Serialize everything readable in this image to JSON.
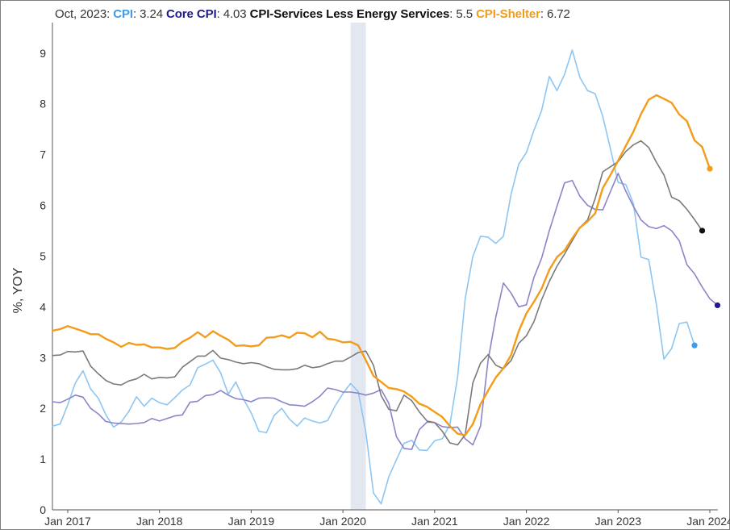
{
  "legend": {
    "date": "Oct, 2023",
    "items": [
      {
        "name": "CPI",
        "value": "3.24",
        "color": "#3d9be9"
      },
      {
        "name": "Core CPI",
        "value": "4.03",
        "color": "#1f1a8c"
      },
      {
        "name": "CPI-Services Less Energy Services",
        "value": "5.5",
        "color": "#111111"
      },
      {
        "name": "CPI-Shelter",
        "value": "6.72",
        "color": "#f39c1a"
      }
    ]
  },
  "chart_data": {
    "type": "line",
    "title": "",
    "xlabel": "",
    "ylabel": "%, YOY",
    "x_ticks": [
      "Jan 2017",
      "Jan 2018",
      "Jan 2019",
      "Jan 2020",
      "Jan 2021",
      "Jan 2022",
      "Jan 2023",
      "Jan 2024"
    ],
    "y_ticks": [
      0,
      1,
      2,
      3,
      4,
      5,
      6,
      7,
      8,
      9
    ],
    "ylim": [
      0,
      9.6
    ],
    "xlim": [
      "2016-11",
      "2024-01"
    ],
    "x_start": "2016-11",
    "recession_band": [
      "2020-02",
      "2020-04"
    ],
    "grid": false,
    "series": [
      {
        "name": "CPI",
        "color": "#8ec6f2",
        "end_marker_color": "#3d9be9",
        "values": [
          1.65,
          1.69,
          2.07,
          2.5,
          2.74,
          2.38,
          2.2,
          1.87,
          1.63,
          1.73,
          1.94,
          2.23,
          2.04,
          2.2,
          2.11,
          2.07,
          2.21,
          2.36,
          2.46,
          2.8,
          2.87,
          2.95,
          2.7,
          2.28,
          2.52,
          2.18,
          1.91,
          1.55,
          1.52,
          1.86,
          2.0,
          1.79,
          1.65,
          1.81,
          1.75,
          1.71,
          1.76,
          2.05,
          2.29,
          2.49,
          2.33,
          1.54,
          0.33,
          0.12,
          0.65,
          0.99,
          1.31,
          1.37,
          1.18,
          1.17,
          1.36,
          1.4,
          1.68,
          2.62,
          4.16,
          4.99,
          5.39,
          5.37,
          5.25,
          5.39,
          6.22,
          6.81,
          7.04,
          7.48,
          7.87,
          8.54,
          8.26,
          8.58,
          9.06,
          8.52,
          8.26,
          8.2,
          7.75,
          7.11,
          6.45,
          6.41,
          6.04,
          4.98,
          4.93,
          4.05,
          2.97,
          3.18,
          3.67,
          3.7,
          3.24
        ]
      },
      {
        "name": "Core CPI",
        "color": "#8a85c8",
        "end_marker_color": "#1f1a8c",
        "values": [
          2.13,
          2.11,
          2.18,
          2.26,
          2.22,
          2.0,
          1.89,
          1.74,
          1.71,
          1.7,
          1.69,
          1.7,
          1.72,
          1.8,
          1.75,
          1.8,
          1.85,
          1.87,
          2.12,
          2.14,
          2.25,
          2.27,
          2.35,
          2.26,
          2.19,
          2.17,
          2.13,
          2.2,
          2.21,
          2.2,
          2.13,
          2.07,
          2.06,
          2.04,
          2.13,
          2.24,
          2.4,
          2.37,
          2.32,
          2.32,
          2.3,
          2.26,
          2.3,
          2.37,
          2.1,
          1.44,
          1.21,
          1.19,
          1.58,
          1.73,
          1.72,
          1.64,
          1.62,
          1.63,
          1.4,
          1.28,
          1.65,
          2.96,
          3.8,
          4.47,
          4.27,
          4.0,
          4.04,
          4.58,
          4.96,
          5.5,
          5.98,
          6.44,
          6.49,
          6.18,
          6.0,
          5.92,
          5.91,
          6.27,
          6.63,
          6.28,
          5.98,
          5.71,
          5.58,
          5.54,
          5.6,
          5.5,
          5.3,
          4.83,
          4.65,
          4.39,
          4.16,
          4.03
        ]
      },
      {
        "name": "CPI-Services Less Energy Services",
        "color": "#7a7a7a",
        "end_marker_color": "#111111",
        "values": [
          3.04,
          3.05,
          3.12,
          3.11,
          3.13,
          2.83,
          2.68,
          2.55,
          2.48,
          2.46,
          2.54,
          2.58,
          2.67,
          2.58,
          2.61,
          2.6,
          2.62,
          2.81,
          2.92,
          3.03,
          3.03,
          3.14,
          2.99,
          2.96,
          2.91,
          2.88,
          2.9,
          2.88,
          2.82,
          2.77,
          2.76,
          2.76,
          2.78,
          2.85,
          2.8,
          2.82,
          2.88,
          2.93,
          2.93,
          3.01,
          3.1,
          3.13,
          2.85,
          2.25,
          1.98,
          1.95,
          2.26,
          2.15,
          1.93,
          1.75,
          1.72,
          1.55,
          1.32,
          1.28,
          1.48,
          2.5,
          2.89,
          3.06,
          2.85,
          2.78,
          2.94,
          3.28,
          3.43,
          3.71,
          4.14,
          4.5,
          4.8,
          5.04,
          5.3,
          5.56,
          5.71,
          6.13,
          6.66,
          6.76,
          6.86,
          7.06,
          7.19,
          7.27,
          7.14,
          6.85,
          6.6,
          6.16,
          6.09,
          5.92,
          5.72,
          5.5
        ]
      },
      {
        "name": "CPI-Shelter",
        "color": "#f39c1a",
        "end_marker_color": "#f39c1a",
        "values": [
          3.53,
          3.56,
          3.62,
          3.57,
          3.52,
          3.46,
          3.46,
          3.37,
          3.3,
          3.21,
          3.29,
          3.25,
          3.26,
          3.2,
          3.2,
          3.17,
          3.19,
          3.31,
          3.39,
          3.5,
          3.4,
          3.52,
          3.43,
          3.35,
          3.23,
          3.24,
          3.22,
          3.24,
          3.39,
          3.4,
          3.44,
          3.39,
          3.49,
          3.48,
          3.4,
          3.51,
          3.37,
          3.35,
          3.3,
          3.31,
          3.24,
          2.95,
          2.64,
          2.52,
          2.4,
          2.38,
          2.33,
          2.23,
          2.09,
          2.03,
          1.93,
          1.83,
          1.65,
          1.5,
          1.47,
          1.69,
          2.08,
          2.35,
          2.61,
          2.79,
          3.05,
          3.52,
          3.87,
          4.1,
          4.36,
          4.73,
          4.98,
          5.11,
          5.35,
          5.56,
          5.68,
          5.84,
          6.34,
          6.6,
          6.88,
          7.17,
          7.45,
          7.8,
          8.08,
          8.17,
          8.1,
          8.02,
          7.79,
          7.66,
          7.28,
          7.15,
          6.72
        ]
      }
    ]
  }
}
